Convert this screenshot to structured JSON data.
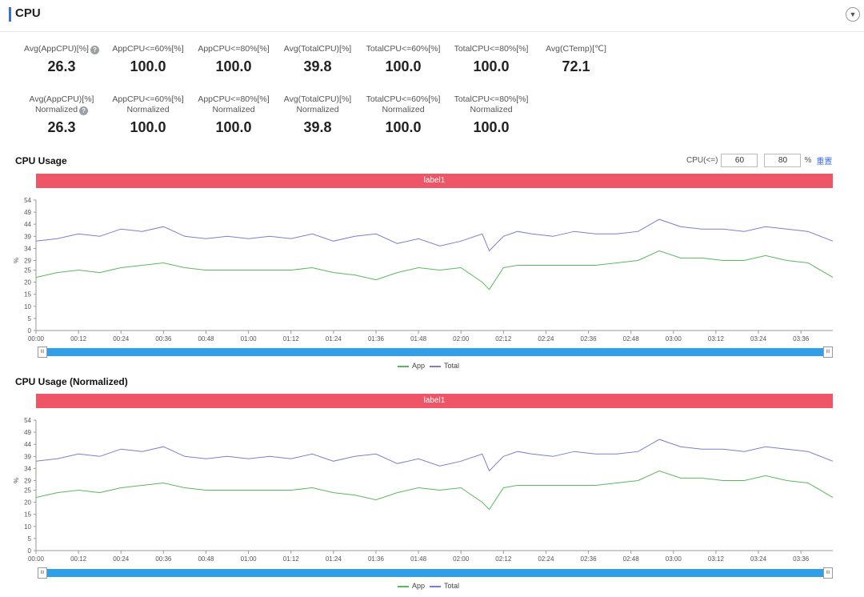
{
  "header": {
    "title": "CPU",
    "collapse_icon": "▼"
  },
  "metrics_row1": [
    {
      "label": "Avg(AppCPU)[%]",
      "help": true,
      "value": "26.3"
    },
    {
      "label": "AppCPU<=60%[%]",
      "value": "100.0"
    },
    {
      "label": "AppCPU<=80%[%]",
      "value": "100.0"
    },
    {
      "label": "Avg(TotalCPU)[%]",
      "value": "39.8"
    },
    {
      "label": "TotalCPU<=60%[%]",
      "value": "100.0"
    },
    {
      "label": "TotalCPU<=80%[%]",
      "value": "100.0"
    },
    {
      "label": "Avg(CTemp)[℃]",
      "value": "72.1"
    }
  ],
  "metrics_row2": [
    {
      "label": "Avg(AppCPU)[%]",
      "label2": "Normalized",
      "help": true,
      "value": "26.3"
    },
    {
      "label": "AppCPU<=60%[%]",
      "label2": "Normalized",
      "value": "100.0"
    },
    {
      "label": "AppCPU<=80%[%]",
      "label2": "Normalized",
      "value": "100.0"
    },
    {
      "label": "Avg(TotalCPU)[%]",
      "label2": "Normalized",
      "value": "39.8"
    },
    {
      "label": "TotalCPU<=60%[%]",
      "label2": "Normalized",
      "value": "100.0"
    },
    {
      "label": "TotalCPU<=80%[%]",
      "label2": "Normalized",
      "value": "100.0"
    }
  ],
  "threshold": {
    "label": "CPU(<=)",
    "low": "60",
    "high": "80",
    "unit": "%",
    "reset": "重置"
  },
  "charts": [
    {
      "title": "CPU Usage",
      "label_bar": "label1"
    },
    {
      "title": "CPU Usage (Normalized)",
      "label_bar": "label1"
    }
  ],
  "legend": {
    "app": "App",
    "total": "Total"
  },
  "colors": {
    "app": "#5cb85c",
    "total": "#7b7fcf",
    "label_bar": "#ee5566",
    "slider": "#2f9fea"
  },
  "chart_data": [
    {
      "type": "line",
      "title": "CPU Usage",
      "xlabel": "",
      "ylabel": "%",
      "yticks": [
        0,
        5,
        10,
        15,
        20,
        25,
        29,
        34,
        39,
        44,
        49,
        54
      ],
      "ylim": [
        0,
        54
      ],
      "xticks": [
        "00:00",
        "00:12",
        "00:24",
        "00:36",
        "00:48",
        "01:00",
        "01:12",
        "01:24",
        "01:36",
        "01:48",
        "02:00",
        "02:12",
        "02:24",
        "02:36",
        "02:48",
        "03:00",
        "03:12",
        "03:24",
        "03:36"
      ],
      "x_minutes_range": [
        0,
        225
      ],
      "series": [
        {
          "name": "App",
          "key": "app"
        },
        {
          "name": "Total",
          "key": "total"
        }
      ],
      "x": [
        0,
        6,
        12,
        18,
        24,
        30,
        36,
        42,
        48,
        54,
        60,
        66,
        72,
        78,
        84,
        90,
        96,
        102,
        108,
        114,
        120,
        126,
        128,
        132,
        136,
        140,
        146,
        152,
        158,
        164,
        170,
        176,
        182,
        188,
        194,
        200,
        206,
        212,
        218,
        225
      ],
      "total": [
        37,
        38,
        40,
        39,
        42,
        41,
        43,
        39,
        38,
        39,
        38,
        39,
        38,
        40,
        37,
        39,
        40,
        36,
        38,
        35,
        37,
        40,
        33,
        39,
        41,
        40,
        39,
        41,
        40,
        40,
        41,
        46,
        43,
        42,
        42,
        41,
        43,
        42,
        41,
        37
      ],
      "app": [
        22,
        24,
        25,
        24,
        26,
        27,
        28,
        26,
        25,
        25,
        25,
        25,
        25,
        26,
        24,
        23,
        21,
        24,
        26,
        25,
        26,
        20,
        17,
        26,
        27,
        27,
        27,
        27,
        27,
        28,
        29,
        33,
        30,
        30,
        29,
        29,
        31,
        29,
        28,
        22
      ]
    },
    {
      "type": "line",
      "title": "CPU Usage (Normalized)",
      "xlabel": "",
      "ylabel": "%",
      "yticks": [
        0,
        5,
        10,
        15,
        20,
        25,
        29,
        34,
        39,
        44,
        49,
        54
      ],
      "ylim": [
        0,
        54
      ],
      "xticks": [
        "00:00",
        "00:12",
        "00:24",
        "00:36",
        "00:48",
        "01:00",
        "01:12",
        "01:24",
        "01:36",
        "01:48",
        "02:00",
        "02:12",
        "02:24",
        "02:36",
        "02:48",
        "03:00",
        "03:12",
        "03:24",
        "03:36"
      ],
      "x_minutes_range": [
        0,
        225
      ],
      "series": [
        {
          "name": "App",
          "key": "app"
        },
        {
          "name": "Total",
          "key": "total"
        }
      ],
      "x": [
        0,
        6,
        12,
        18,
        24,
        30,
        36,
        42,
        48,
        54,
        60,
        66,
        72,
        78,
        84,
        90,
        96,
        102,
        108,
        114,
        120,
        126,
        128,
        132,
        136,
        140,
        146,
        152,
        158,
        164,
        170,
        176,
        182,
        188,
        194,
        200,
        206,
        212,
        218,
        225
      ],
      "total": [
        37,
        38,
        40,
        39,
        42,
        41,
        43,
        39,
        38,
        39,
        38,
        39,
        38,
        40,
        37,
        39,
        40,
        36,
        38,
        35,
        37,
        40,
        33,
        39,
        41,
        40,
        39,
        41,
        40,
        40,
        41,
        46,
        43,
        42,
        42,
        41,
        43,
        42,
        41,
        37
      ],
      "app": [
        22,
        24,
        25,
        24,
        26,
        27,
        28,
        26,
        25,
        25,
        25,
        25,
        25,
        26,
        24,
        23,
        21,
        24,
        26,
        25,
        26,
        20,
        17,
        26,
        27,
        27,
        27,
        27,
        27,
        28,
        29,
        33,
        30,
        30,
        29,
        29,
        31,
        29,
        28,
        22
      ]
    }
  ]
}
